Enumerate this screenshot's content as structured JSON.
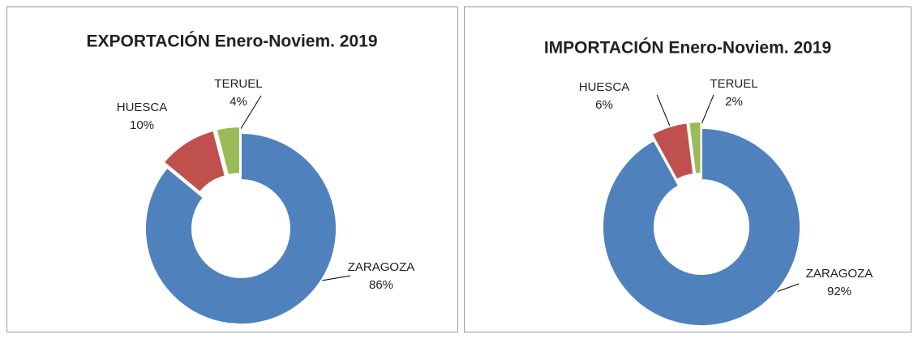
{
  "chart_data": [
    {
      "type": "pie",
      "title": "EXPORTACIÓN Enero-Noviem. 2019",
      "categories": [
        "ZARAGOZA",
        "HUESCA",
        "TERUEL"
      ],
      "values": [
        86,
        10,
        4
      ],
      "value_labels": [
        "86%",
        "10%",
        "4%"
      ],
      "colors": [
        "#4f81bd",
        "#c0504d",
        "#9bbb59"
      ]
    },
    {
      "type": "pie",
      "title": "IMPORTACIÓN Enero-Noviem. 2019",
      "categories": [
        "ZARAGOZA",
        "HUESCA",
        "TERUEL"
      ],
      "values": [
        92,
        6,
        2
      ],
      "value_labels": [
        "92%",
        "6%",
        "2%"
      ],
      "colors": [
        "#4f81bd",
        "#c0504d",
        "#9bbb59"
      ]
    }
  ]
}
